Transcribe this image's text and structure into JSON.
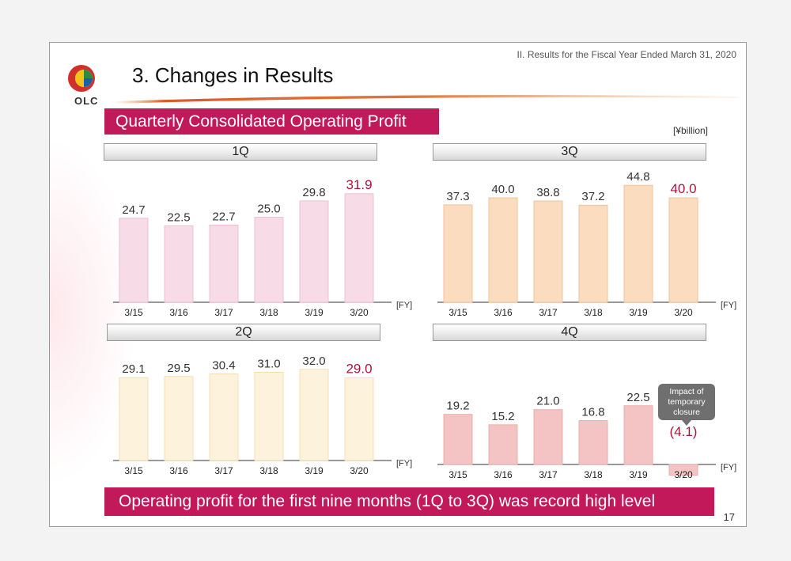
{
  "header": {
    "section_ref": "II. Results for the Fiscal Year Ended March 31, 2020",
    "title": "3. Changes in Results",
    "logo_text": "OLC",
    "page_number": "17"
  },
  "subtitle": "Quarterly Consolidated Operating Profit",
  "unit": "[¥billion]",
  "footer": "Operating profit for the first nine months (1Q to 3Q) was record high level",
  "annotation": "Impact of temporary closure",
  "colors": {
    "accent": "#c2195a",
    "highlight": "#a3183a",
    "q1_fill": "#f7dbe6",
    "q2_fill": "#fdf3dc",
    "q3_fill": "#fbdcbf",
    "q4_fill": "#f4c4c4"
  },
  "chart_data": [
    {
      "type": "bar",
      "title": "1Q",
      "categories": [
        "3/15",
        "3/16",
        "3/17",
        "3/18",
        "3/19",
        "3/20"
      ],
      "values": [
        24.7,
        22.5,
        22.7,
        25.0,
        29.8,
        31.9
      ],
      "value_labels": [
        "24.7",
        "22.5",
        "22.7",
        "25.0",
        "29.8",
        "31.9"
      ],
      "axis_suffix": "[FY]"
    },
    {
      "type": "bar",
      "title": "3Q",
      "categories": [
        "3/15",
        "3/16",
        "3/17",
        "3/18",
        "3/19",
        "3/20"
      ],
      "values": [
        37.3,
        40.0,
        38.8,
        37.2,
        44.8,
        40.0
      ],
      "value_labels": [
        "37.3",
        "40.0",
        "38.8",
        "37.2",
        "44.8",
        "40.0"
      ],
      "axis_suffix": "[FY]"
    },
    {
      "type": "bar",
      "title": "2Q",
      "categories": [
        "3/15",
        "3/16",
        "3/17",
        "3/18",
        "3/19",
        "3/20"
      ],
      "values": [
        29.1,
        29.5,
        30.4,
        31.0,
        32.0,
        29.0
      ],
      "value_labels": [
        "29.1",
        "29.5",
        "30.4",
        "31.0",
        "32.0",
        "29.0"
      ],
      "axis_suffix": "[FY]"
    },
    {
      "type": "bar",
      "title": "4Q",
      "categories": [
        "3/15",
        "3/16",
        "3/17",
        "3/18",
        "3/19",
        "3/20"
      ],
      "values": [
        19.2,
        15.2,
        21.0,
        16.8,
        22.5,
        -4.1
      ],
      "value_labels": [
        "19.2",
        "15.2",
        "21.0",
        "16.8",
        "22.5",
        "(4.1)"
      ],
      "axis_suffix": "[FY]"
    }
  ]
}
